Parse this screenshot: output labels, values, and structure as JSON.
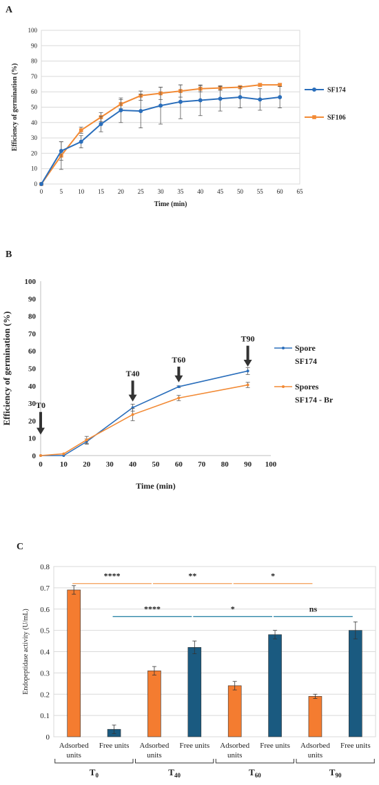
{
  "panels": {
    "a": {
      "letter": "A",
      "chart_data": {
        "type": "line",
        "xlabel": "Time (min)",
        "ylabel": "Efficiency of germination (%)",
        "xlim": [
          0,
          65
        ],
        "ylim": [
          0,
          100
        ],
        "xticks": [
          0,
          5,
          10,
          15,
          20,
          25,
          30,
          35,
          40,
          45,
          50,
          55,
          60,
          65
        ],
        "yticks": [
          0,
          10,
          20,
          30,
          40,
          50,
          60,
          70,
          80,
          90,
          100
        ],
        "grid": true,
        "legend": "right",
        "x": [
          0,
          5,
          10,
          15,
          20,
          25,
          30,
          35,
          40,
          45,
          50,
          55,
          60
        ],
        "series": [
          {
            "name": "SF174",
            "color": "#2a6ebb",
            "values": [
              0,
              21.5,
              27.5,
              39,
              48,
              47.5,
              51,
              53.5,
              54.5,
              55.5,
              56.5,
              55,
              56.5
            ],
            "errors": [
              0,
              6,
              4,
              5,
              8,
              11,
              12,
              11,
              10,
              8,
              7,
              7,
              7
            ]
          },
          {
            "name": "SF106",
            "color": "#f28a35",
            "values": [
              0,
              18.5,
              35,
              43.5,
              52,
              57.5,
              59,
              60.5,
              62,
              62.5,
              63,
              64.5,
              64.5
            ],
            "errors": [
              0,
              9,
              2,
              3,
              3,
              3,
              4,
              4,
              2,
              1.5,
              1,
              1,
              1
            ]
          }
        ]
      }
    },
    "b": {
      "letter": "B",
      "chart_data": {
        "type": "line",
        "xlabel": "Time (min)",
        "ylabel": "Efficiency of germination (%)",
        "xlim": [
          0,
          100
        ],
        "ylim": [
          0,
          100
        ],
        "xticks": [
          0,
          10,
          20,
          30,
          40,
          50,
          60,
          70,
          80,
          90,
          100
        ],
        "yticks": [
          0,
          10,
          20,
          30,
          40,
          50,
          60,
          70,
          80,
          90,
          100
        ],
        "grid": false,
        "legend": "right",
        "x": [
          0,
          10,
          20,
          40,
          60,
          90
        ],
        "series": [
          {
            "name": "Spore SF174",
            "name_lines": [
              "Spore",
              "SF174"
            ],
            "color": "#2a6ebb",
            "values": [
              0,
              0,
              8,
              27.5,
              39.5,
              48.5
            ],
            "errors": [
              0,
              0,
              1.5,
              2,
              0.5,
              2
            ]
          },
          {
            "name": "Spores SF174 - Br",
            "name_lines": [
              "Spores",
              "SF174 - Br"
            ],
            "color": "#f28a35",
            "values": [
              0,
              1,
              9,
              23.5,
              33,
              40.5
            ],
            "errors": [
              0,
              0,
              2,
              3.5,
              1.5,
              1.5
            ]
          }
        ],
        "annotations": [
          {
            "label": "T0",
            "x": 0,
            "arrow_from": 25,
            "arrow_to": 12
          },
          {
            "label": "T40",
            "x": 40,
            "arrow_from": 43,
            "arrow_to": 31
          },
          {
            "label": "T60",
            "x": 60,
            "arrow_from": 51,
            "arrow_to": 42
          },
          {
            "label": "T90",
            "x": 90,
            "arrow_from": 63,
            "arrow_to": 51
          }
        ]
      }
    },
    "c": {
      "letter": "C",
      "chart_data": {
        "type": "bar",
        "ylabel": "Endopeptidase activity (U/mL)",
        "ylim": [
          0,
          0.8
        ],
        "yticks": [
          0,
          0.1,
          0.2,
          0.3,
          0.4,
          0.5,
          0.6,
          0.7,
          0.8
        ],
        "grid": true,
        "bars": [
          {
            "group": "T0",
            "kind": "Adsorbed units",
            "value": 0.69,
            "error": 0.02,
            "color": "#f47c30"
          },
          {
            "group": "T0",
            "kind": "Free units",
            "value": 0.035,
            "error": 0.02,
            "color": "#1a5a80"
          },
          {
            "group": "T40",
            "kind": "Adsorbed units",
            "value": 0.31,
            "error": 0.02,
            "color": "#f47c30"
          },
          {
            "group": "T40",
            "kind": "Free units",
            "value": 0.42,
            "error": 0.03,
            "color": "#1a5a80"
          },
          {
            "group": "T60",
            "kind": "Adsorbed units",
            "value": 0.24,
            "error": 0.02,
            "color": "#f47c30"
          },
          {
            "group": "T60",
            "kind": "Free units",
            "value": 0.48,
            "error": 0.02,
            "color": "#1a5a80"
          },
          {
            "group": "T90",
            "kind": "Adsorbed units",
            "value": 0.19,
            "error": 0.01,
            "color": "#f47c30"
          },
          {
            "group": "T90",
            "kind": "Free units",
            "value": 0.5,
            "error": 0.04,
            "color": "#1a5a80"
          }
        ],
        "category_labels": [
          [
            "Adsorbed",
            "units"
          ],
          [
            "Free units"
          ],
          [
            "Adsorbed",
            "units"
          ],
          [
            "Free units"
          ],
          [
            "Adsorbed",
            "units"
          ],
          [
            "Free units"
          ],
          [
            "Adsorbed",
            "units"
          ],
          [
            "Free units"
          ]
        ],
        "groups": [
          {
            "base": "T",
            "sub": "0"
          },
          {
            "base": "T",
            "sub": "40"
          },
          {
            "base": "T",
            "sub": "60"
          },
          {
            "base": "T",
            "sub": "90"
          }
        ],
        "significance": [
          {
            "label": "****",
            "from_bar": 0,
            "to_bar": 2,
            "color": "#f5a563",
            "y": 0.72
          },
          {
            "label": "**",
            "from_bar": 2,
            "to_bar": 4,
            "color": "#f5a563",
            "y": 0.72
          },
          {
            "label": "*",
            "from_bar": 4,
            "to_bar": 6,
            "color": "#f5a563",
            "y": 0.72
          },
          {
            "label": "****",
            "from_bar": 1,
            "to_bar": 3,
            "color": "#2b84a6",
            "y": 0.565
          },
          {
            "label": "*",
            "from_bar": 3,
            "to_bar": 5,
            "color": "#2b84a6",
            "y": 0.565
          },
          {
            "label": "ns",
            "from_bar": 5,
            "to_bar": 7,
            "color": "#2b84a6",
            "y": 0.565
          }
        ]
      }
    }
  }
}
